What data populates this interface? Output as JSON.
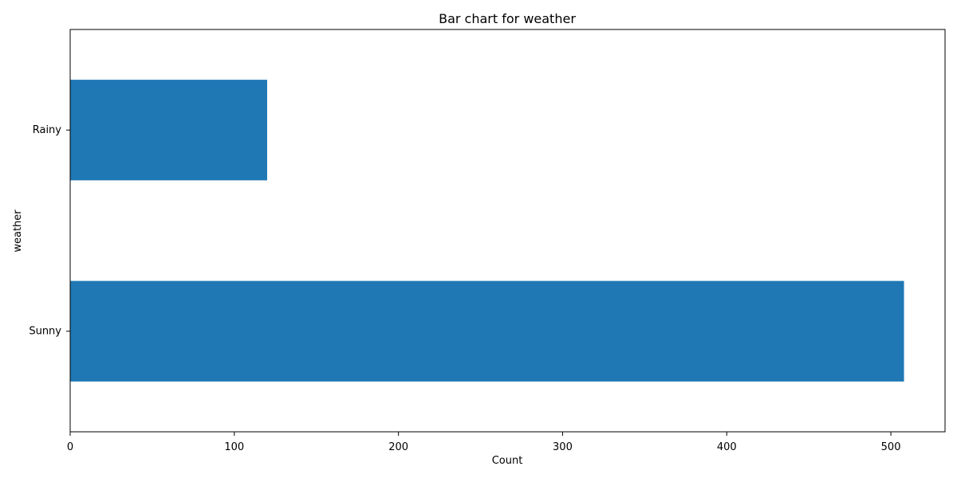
{
  "chart_data": {
    "type": "bar",
    "orientation": "horizontal",
    "title": "Bar chart for weather",
    "xlabel": "Count",
    "ylabel": "weather",
    "categories": [
      "Sunny",
      "Rainy"
    ],
    "values": [
      508,
      120
    ],
    "xlim": [
      0,
      533
    ],
    "xticks": [
      0,
      100,
      200,
      300,
      400,
      500
    ],
    "xtick_labels": [
      "0",
      "100",
      "200",
      "300",
      "400",
      "500"
    ],
    "grid": false,
    "legend": "none",
    "bar_color": "#1f77b4"
  }
}
